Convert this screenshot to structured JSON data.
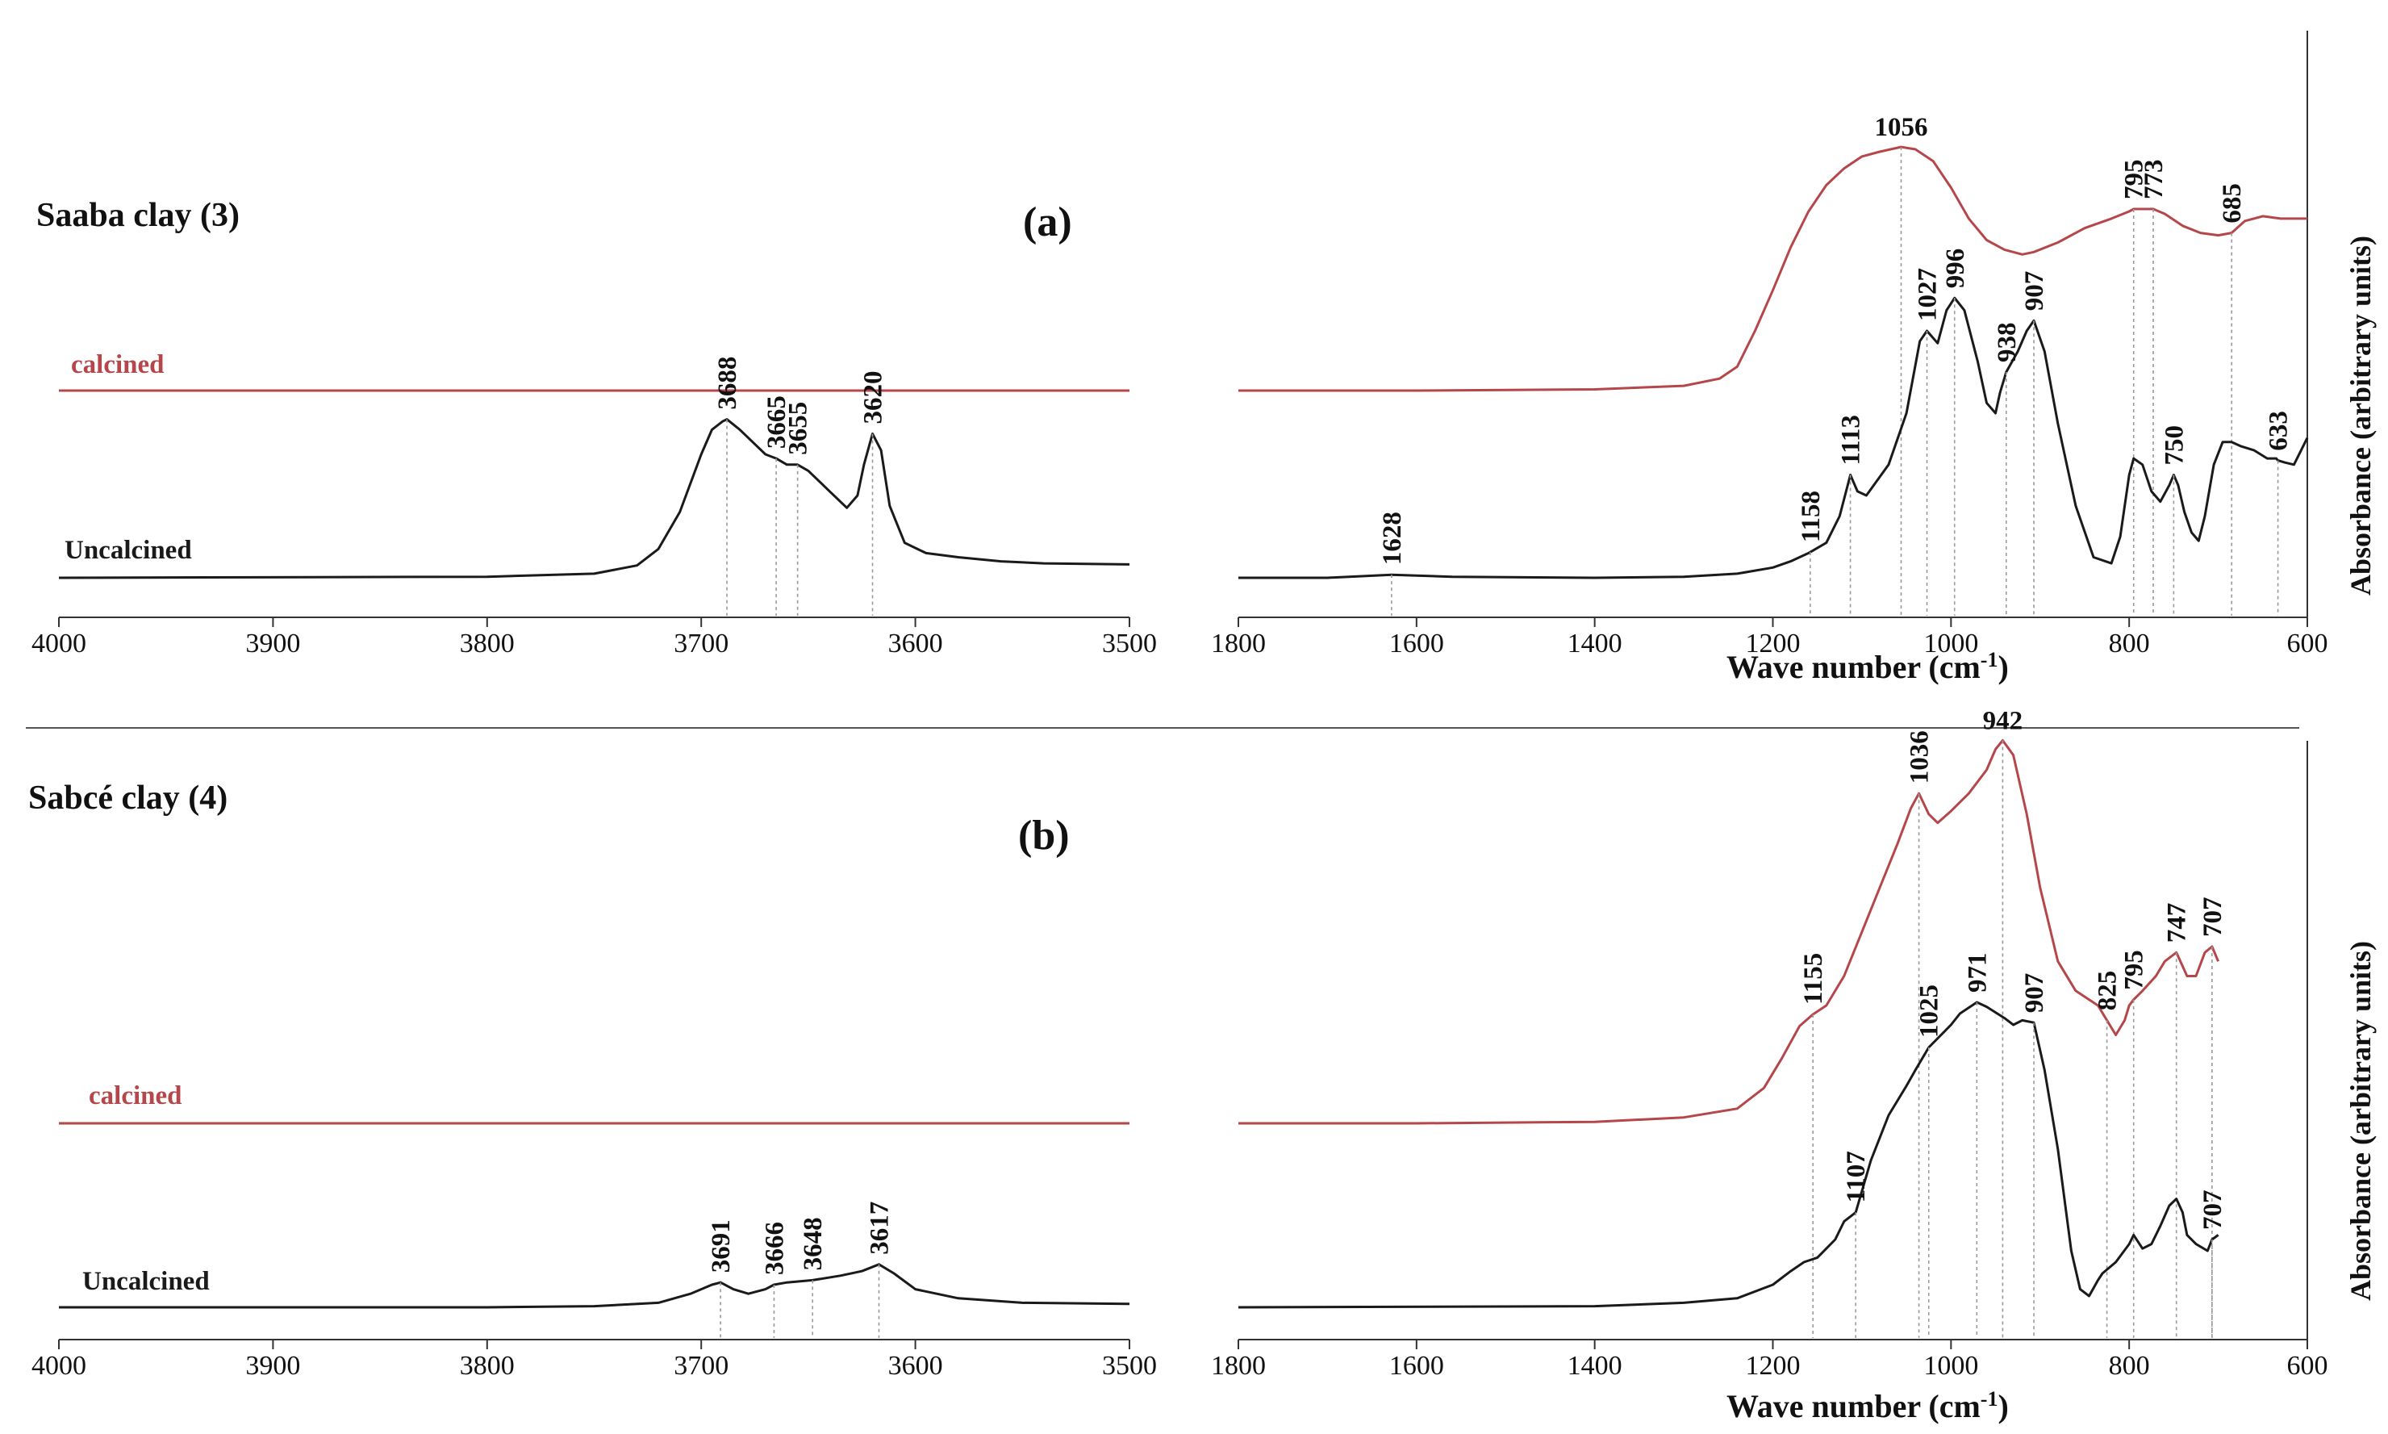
{
  "colors": {
    "calcined": "#b5474b",
    "uncalcined": "#1a1a1a",
    "axis": "#333333",
    "guide": "#9a9a9a"
  },
  "chart_data": [
    {
      "type": "line",
      "panel": "(a)",
      "title": "Saaba clay (3)",
      "ylabel": "Absorbance (arbitrary units)",
      "xlabel": "Wave number (cm",
      "xlabel_sup": "-1",
      "xlabel_close": ")",
      "left_xlim": [
        4000,
        3500
      ],
      "left_ticks": [
        "4000",
        "3900",
        "3800",
        "3700",
        "3600",
        "3500"
      ],
      "right_xlim": [
        1800,
        600
      ],
      "right_ticks": [
        "1800",
        "1600",
        "1400",
        "1200",
        "1000",
        "800",
        "600"
      ],
      "series": [
        {
          "name": "calcined",
          "label": "calcined",
          "color": "#b5474b",
          "left": {
            "x": [
              4000,
              3500
            ],
            "y": [
              0.0,
              0.0
            ]
          },
          "right": {
            "x": [
              1800,
              1600,
              1400,
              1300,
              1260,
              1240,
              1220,
              1200,
              1180,
              1160,
              1140,
              1120,
              1100,
              1080,
              1056,
              1040,
              1020,
              1000,
              980,
              960,
              940,
              920,
              907,
              880,
              850,
              820,
              800,
              795,
              785,
              773,
              760,
              740,
              720,
              700,
              685,
              670,
              650,
              630,
              600
            ],
            "y": [
              0.0,
              0.0,
              0.005,
              0.02,
              0.05,
              0.1,
              0.25,
              0.42,
              0.6,
              0.75,
              0.86,
              0.93,
              0.98,
              1.0,
              1.02,
              1.01,
              0.96,
              0.85,
              0.72,
              0.63,
              0.59,
              0.57,
              0.58,
              0.62,
              0.68,
              0.72,
              0.75,
              0.76,
              0.76,
              0.76,
              0.74,
              0.69,
              0.66,
              0.65,
              0.66,
              0.71,
              0.73,
              0.72,
              0.72
            ]
          },
          "peaks": [
            {
              "x": 1056,
              "label": "1056",
              "dir": "h"
            },
            {
              "x": 795,
              "label": "795",
              "dir": "v"
            },
            {
              "x": 773,
              "label": "773",
              "dir": "v"
            },
            {
              "x": 685,
              "label": "685",
              "dir": "v"
            }
          ]
        },
        {
          "name": "Uncalcined",
          "label": "Uncalcined",
          "color": "#1a1a1a",
          "left": {
            "x": [
              4000,
              3800,
              3750,
              3730,
              3720,
              3710,
              3700,
              3695,
              3690,
              3688,
              3682,
              3675,
              3670,
              3665,
              3660,
              3655,
              3650,
              3640,
              3632,
              3627,
              3624,
              3620,
              3616,
              3612,
              3605,
              3595,
              3580,
              3560,
              3540,
              3500
            ],
            "y": [
              0.0,
              0.005,
              0.02,
              0.06,
              0.14,
              0.32,
              0.6,
              0.72,
              0.76,
              0.77,
              0.72,
              0.65,
              0.6,
              0.58,
              0.55,
              0.55,
              0.52,
              0.42,
              0.34,
              0.4,
              0.55,
              0.7,
              0.62,
              0.35,
              0.17,
              0.12,
              0.1,
              0.08,
              0.07,
              0.065
            ]
          },
          "right": {
            "x": [
              1800,
              1700,
              1628,
              1560,
              1400,
              1300,
              1240,
              1200,
              1180,
              1160,
              1140,
              1125,
              1113,
              1105,
              1095,
              1070,
              1050,
              1035,
              1027,
              1015,
              1005,
              996,
              985,
              970,
              960,
              950,
              945,
              938,
              925,
              915,
              907,
              895,
              880,
              860,
              840,
              820,
              810,
              800,
              795,
              785,
              775,
              765,
              755,
              750,
              745,
              738,
              730,
              722,
              715,
              705,
              695,
              685,
              675,
              660,
              645,
              635,
              633,
              625,
              615,
              600
            ],
            "y": [
              0.0,
              0.0,
              0.015,
              0.005,
              0.0,
              0.005,
              0.02,
              0.05,
              0.08,
              0.12,
              0.17,
              0.3,
              0.5,
              0.42,
              0.4,
              0.55,
              0.8,
              1.15,
              1.2,
              1.14,
              1.3,
              1.36,
              1.3,
              1.05,
              0.85,
              0.8,
              0.9,
              1.0,
              1.1,
              1.2,
              1.25,
              1.1,
              0.75,
              0.35,
              0.1,
              0.07,
              0.2,
              0.5,
              0.58,
              0.55,
              0.42,
              0.37,
              0.45,
              0.5,
              0.45,
              0.32,
              0.22,
              0.18,
              0.3,
              0.55,
              0.66,
              0.66,
              0.64,
              0.62,
              0.58,
              0.58,
              0.57,
              0.56,
              0.55,
              0.68
            ]
          },
          "peaks_left": [
            {
              "x": 3688,
              "label": "3688"
            },
            {
              "x": 3665,
              "label": "3665"
            },
            {
              "x": 3655,
              "label": "3655"
            },
            {
              "x": 3620,
              "label": "3620"
            }
          ],
          "peaks_right": [
            {
              "x": 1628,
              "label": "1628"
            },
            {
              "x": 1158,
              "label": "1158"
            },
            {
              "x": 1113,
              "label": "1113"
            },
            {
              "x": 1027,
              "label": "1027"
            },
            {
              "x": 996,
              "label": "996"
            },
            {
              "x": 938,
              "label": "938"
            },
            {
              "x": 907,
              "label": "907"
            },
            {
              "x": 750,
              "label": "750"
            },
            {
              "x": 633,
              "label": "633"
            }
          ]
        }
      ]
    },
    {
      "type": "line",
      "panel": "(b)",
      "title": "Sabcé clay (4)",
      "ylabel": "Absorbance (arbitrary units)",
      "xlabel": "Wave number (cm",
      "xlabel_sup": "-1",
      "xlabel_close": ")",
      "left_xlim": [
        4000,
        3500
      ],
      "left_ticks": [
        "4000",
        "3900",
        "3800",
        "3700",
        "3600",
        "3500"
      ],
      "right_xlim": [
        1800,
        600
      ],
      "right_ticks": [
        "1800",
        "1600",
        "1400",
        "1200",
        "1000",
        "800",
        "600"
      ],
      "series": [
        {
          "name": "calcined",
          "label": "calcined",
          "color": "#b5474b",
          "left": {
            "x": [
              4000,
              3500
            ],
            "y": [
              0.0,
              0.0
            ]
          },
          "right": {
            "x": [
              1800,
              1600,
              1400,
              1300,
              1240,
              1210,
              1190,
              1170,
              1155,
              1140,
              1120,
              1100,
              1080,
              1060,
              1045,
              1036,
              1025,
              1015,
              1000,
              980,
              960,
              950,
              942,
              930,
              915,
              900,
              880,
              860,
              845,
              835,
              825,
              815,
              805,
              800,
              795,
              785,
              770,
              760,
              747,
              735,
              725,
              715,
              707,
              700
            ],
            "y": [
              0.0,
              0.0,
              0.005,
              0.02,
              0.05,
              0.12,
              0.22,
              0.33,
              0.37,
              0.4,
              0.5,
              0.65,
              0.8,
              0.95,
              1.07,
              1.12,
              1.05,
              1.02,
              1.06,
              1.12,
              1.2,
              1.27,
              1.3,
              1.25,
              1.05,
              0.8,
              0.55,
              0.45,
              0.42,
              0.4,
              0.35,
              0.3,
              0.35,
              0.4,
              0.42,
              0.45,
              0.5,
              0.55,
              0.58,
              0.5,
              0.5,
              0.58,
              0.6,
              0.55
            ]
          },
          "peaks": [
            {
              "x": 1155,
              "label": "1155",
              "dir": "v"
            },
            {
              "x": 1036,
              "label": "1036",
              "dir": "v"
            },
            {
              "x": 942,
              "label": "942",
              "dir": "h"
            },
            {
              "x": 825,
              "label": "825",
              "dir": "v"
            },
            {
              "x": 795,
              "label": "795",
              "dir": "v"
            },
            {
              "x": 747,
              "label": "747",
              "dir": "v"
            },
            {
              "x": 707,
              "label": "707",
              "dir": "v"
            }
          ]
        },
        {
          "name": "Uncalcined",
          "label": "Uncalcined",
          "color": "#1a1a1a",
          "left": {
            "x": [
              4000,
              3800,
              3750,
              3720,
              3705,
              3695,
              3691,
              3685,
              3678,
              3670,
              3666,
              3660,
              3648,
              3635,
              3625,
              3617,
              3610,
              3600,
              3580,
              3550,
              3500
            ],
            "y": [
              0.0,
              0.0,
              0.005,
              0.02,
              0.06,
              0.1,
              0.11,
              0.08,
              0.06,
              0.08,
              0.1,
              0.11,
              0.12,
              0.14,
              0.16,
              0.19,
              0.15,
              0.08,
              0.04,
              0.02,
              0.015
            ]
          },
          "right": {
            "x": [
              1800,
              1400,
              1300,
              1240,
              1200,
              1180,
              1165,
              1150,
              1130,
              1120,
              1107,
              1090,
              1070,
              1050,
              1040,
              1025,
              1000,
              990,
              971,
              960,
              940,
              930,
              920,
              907,
              895,
              880,
              865,
              855,
              845,
              835,
              830,
              815,
              800,
              795,
              785,
              775,
              765,
              755,
              747,
              740,
              735,
              725,
              712,
              707,
              700
            ],
            "y": [
              0.0,
              0.005,
              0.02,
              0.04,
              0.1,
              0.16,
              0.2,
              0.22,
              0.3,
              0.38,
              0.42,
              0.65,
              0.85,
              0.98,
              1.05,
              1.15,
              1.25,
              1.3,
              1.35,
              1.33,
              1.28,
              1.25,
              1.27,
              1.26,
              1.05,
              0.7,
              0.25,
              0.08,
              0.05,
              0.12,
              0.15,
              0.2,
              0.28,
              0.32,
              0.26,
              0.28,
              0.36,
              0.45,
              0.48,
              0.42,
              0.32,
              0.28,
              0.25,
              0.3,
              0.32
            ]
          },
          "peaks_left": [
            {
              "x": 3691,
              "label": "3691"
            },
            {
              "x": 3666,
              "label": "3666"
            },
            {
              "x": 3648,
              "label": "3648"
            },
            {
              "x": 3617,
              "label": "3617"
            }
          ],
          "peaks_right": [
            {
              "x": 1107,
              "label": "1107"
            },
            {
              "x": 1025,
              "label": "1025"
            },
            {
              "x": 971,
              "label": "971"
            },
            {
              "x": 907,
              "label": "907"
            },
            {
              "x": 707,
              "label": "707"
            }
          ]
        }
      ]
    }
  ]
}
